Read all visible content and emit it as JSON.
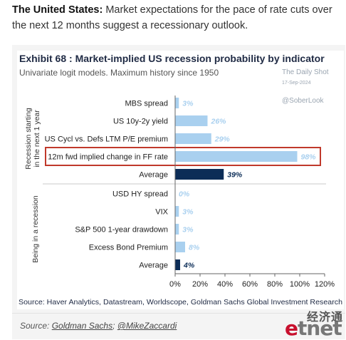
{
  "intro": {
    "bold": "The United States:",
    "text": " Market expectations for the pace of rate cuts over the next 12 months suggest a recessionary outlook."
  },
  "chart_data": {
    "type": "bar",
    "orientation": "horizontal",
    "title": "Exhibit 68 : Market-implied US recession probability by indicator",
    "subtitle": "Univariate logit models. Maximum history since 1950",
    "watermark": [
      "The Daily Shot",
      "17-Sep-2024",
      "@SoberLook"
    ],
    "source": "Source: Haver Analytics, Datastream, Worldscope, Goldman Sachs Global Investment Research",
    "xlim": [
      0,
      120
    ],
    "xticks": [
      "0%",
      "20%",
      "40%",
      "60%",
      "80%",
      "100%",
      "120%"
    ],
    "value_suffix": "%",
    "colors": {
      "bar": "#a9d0ef",
      "average": "#0c2d57",
      "label_light": "#a9d0ef",
      "label_dark": "#0c2d57",
      "highlight": "#c0392b"
    },
    "groups": [
      {
        "label": "Recession starting in the next 1 year",
        "bars": [
          {
            "label": "MBS spread",
            "value": 3,
            "average": false
          },
          {
            "label": "US 10y-2y yield",
            "value": 26,
            "average": false
          },
          {
            "label": "US Cycl vs. Defs LTM P/E premium",
            "value": 29,
            "average": false
          },
          {
            "label": "12m fwd implied change in FF rate",
            "value": 98,
            "average": false,
            "highlight": true
          },
          {
            "label": "Average",
            "value": 39,
            "average": true
          }
        ]
      },
      {
        "label": "Being in a recession",
        "bars": [
          {
            "label": "USD HY spread",
            "value": 0,
            "average": false
          },
          {
            "label": "VIX",
            "value": 3,
            "average": false
          },
          {
            "label": "S&P 500 1-year drawdown",
            "value": 3,
            "average": false
          },
          {
            "label": "Excess Bond Premium",
            "value": 8,
            "average": false
          },
          {
            "label": "Average",
            "value": 4,
            "average": true
          }
        ]
      }
    ]
  },
  "caption": {
    "prefix": "Source: ",
    "link1": "Goldman Sachs",
    "sep": "; ",
    "link2": "@MikeZaccardi"
  },
  "logo": {
    "chinese": "经济通",
    "e": "e",
    "tnet": "tnet"
  }
}
